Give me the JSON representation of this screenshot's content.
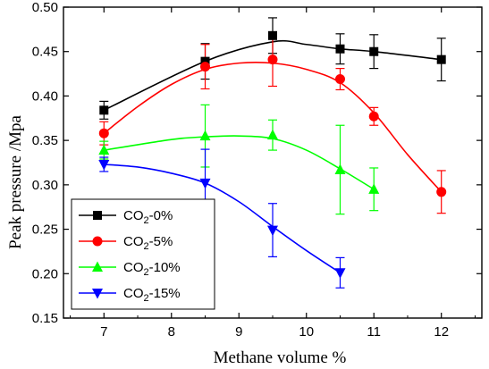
{
  "chart_data": {
    "type": "line",
    "xlabel": "Methane volume  %",
    "ylabel": "Peak pressure /Mpa",
    "xlim": [
      6.4,
      12.6
    ],
    "ylim": [
      0.15,
      0.5
    ],
    "xticks": [
      7,
      8,
      9,
      10,
      11,
      12
    ],
    "yticks": [
      0.15,
      0.2,
      0.25,
      0.3,
      0.35,
      0.4,
      0.45,
      0.5
    ],
    "xtick_labels": [
      "7",
      "8",
      "9",
      "10",
      "11",
      "12"
    ],
    "ytick_labels": [
      "0.15",
      "0.20",
      "0.25",
      "0.30",
      "0.35",
      "0.40",
      "0.45",
      "0.50"
    ],
    "legend_position": "bottom-left",
    "grid": false,
    "series": [
      {
        "name": "CO2-0%",
        "legend_base": "CO",
        "legend_sub": "2",
        "legend_rest": "-0%",
        "color": "#000000",
        "marker": "square",
        "x": [
          7,
          8.5,
          9.5,
          10.5,
          11,
          12
        ],
        "y": [
          0.384,
          0.439,
          0.468,
          0.453,
          0.45,
          0.441
        ],
        "err": [
          0.01,
          0.02,
          0.02,
          0.017,
          0.019,
          0.024
        ],
        "fit": [
          [
            7,
            0.384
          ],
          [
            8.5,
            0.439
          ],
          [
            9.5,
            0.461
          ],
          [
            10,
            0.458
          ],
          [
            10.5,
            0.453
          ],
          [
            11,
            0.45
          ],
          [
            12,
            0.441
          ]
        ]
      },
      {
        "name": "CO2-5%",
        "legend_base": "CO",
        "legend_sub": "2",
        "legend_rest": "-5%",
        "color": "#ff0000",
        "marker": "circle",
        "x": [
          7,
          8.5,
          9.5,
          10.5,
          11,
          12
        ],
        "y": [
          0.358,
          0.433,
          0.441,
          0.419,
          0.377,
          0.292
        ],
        "err": [
          0.013,
          0.025,
          0.03,
          0.012,
          0.01,
          0.024
        ],
        "fit": [
          [
            7,
            0.358
          ],
          [
            7.5,
            0.388
          ],
          [
            8,
            0.413
          ],
          [
            8.5,
            0.43
          ],
          [
            9,
            0.437
          ],
          [
            9.5,
            0.437
          ],
          [
            10,
            0.43
          ],
          [
            10.5,
            0.415
          ],
          [
            11,
            0.381
          ],
          [
            11.5,
            0.334
          ],
          [
            12,
            0.292
          ]
        ]
      },
      {
        "name": "CO2-10%",
        "legend_base": "CO",
        "legend_sub": "2",
        "legend_rest": "-10%",
        "color": "#00ff00",
        "marker": "triangle-up",
        "x": [
          7,
          8.5,
          9.5,
          10.5,
          11
        ],
        "y": [
          0.339,
          0.355,
          0.356,
          0.317,
          0.295
        ],
        "err": [
          0.01,
          0.035,
          0.017,
          0.05,
          0.024
        ],
        "fit": [
          [
            7,
            0.339
          ],
          [
            8,
            0.351
          ],
          [
            8.5,
            0.354
          ],
          [
            9,
            0.355
          ],
          [
            9.5,
            0.352
          ],
          [
            10,
            0.339
          ],
          [
            10.5,
            0.318
          ],
          [
            11,
            0.295
          ]
        ]
      },
      {
        "name": "CO2-15%",
        "legend_base": "CO",
        "legend_sub": "2",
        "legend_rest": "-15%",
        "color": "#0000ff",
        "marker": "triangle-down",
        "x": [
          7,
          8.5,
          9.5,
          10.5
        ],
        "y": [
          0.323,
          0.302,
          0.249,
          0.201
        ],
        "err": [
          0.008,
          0.038,
          0.03,
          0.017
        ],
        "fit": [
          [
            7,
            0.323
          ],
          [
            7.5,
            0.32
          ],
          [
            8,
            0.313
          ],
          [
            8.5,
            0.302
          ],
          [
            9,
            0.281
          ],
          [
            9.5,
            0.253
          ],
          [
            10,
            0.226
          ],
          [
            10.5,
            0.201
          ]
        ]
      }
    ]
  }
}
